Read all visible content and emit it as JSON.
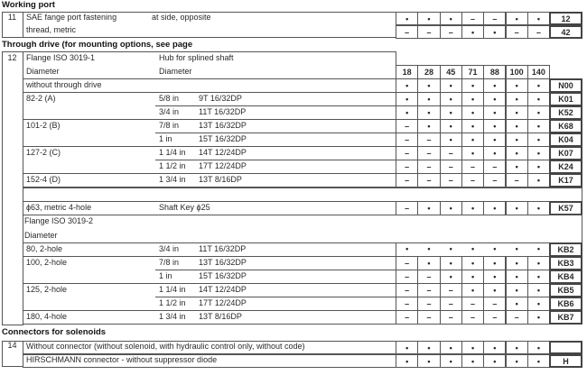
{
  "working_port": {
    "title": "Working port",
    "number": "11",
    "label": [
      "SAE fange port fastening",
      "thread, metric"
    ],
    "options": [
      {
        "desc": "at side, opposite",
        "values": [
          "•",
          "•",
          "•",
          "–",
          "–",
          "•",
          "•"
        ],
        "code": "12"
      },
      {
        "desc": "",
        "values": [
          "–",
          "–",
          "–",
          "•",
          "•",
          "–",
          "–"
        ],
        "code": "42"
      }
    ]
  },
  "through_drive": {
    "title": "Through drive (for mounting options, see page",
    "number": "12",
    "header": {
      "flange": "Flange ISO 3019-1",
      "hub": "Hub for splined shaft",
      "flange_sub": "Diameter",
      "hub_sub": "Diameter"
    },
    "sizes": [
      "18",
      "28",
      "45",
      "71",
      "88",
      "100",
      "140"
    ],
    "rows_a": [
      {
        "flange": "without through drive",
        "hub": "",
        "spline": "",
        "values": [
          "•",
          "•",
          "•",
          "•",
          "•",
          "•",
          "•"
        ],
        "code": "N00"
      },
      {
        "flange": "82-2 (A)",
        "hub": "5/8 in",
        "spline": "9T 16/32DP",
        "values": [
          "•",
          "•",
          "•",
          "•",
          "•",
          "•",
          "•"
        ],
        "code": "K01"
      },
      {
        "flange": "",
        "hub": "3/4 in",
        "spline": "11T 16/32DP",
        "values": [
          "•",
          "•",
          "•",
          "•",
          "•",
          "•",
          "•"
        ],
        "code": "K52"
      },
      {
        "flange": "101-2 (B)",
        "hub": "7/8 in",
        "spline": "13T 16/32DP",
        "values": [
          "–",
          "•",
          "•",
          "•",
          "•",
          "•",
          "•"
        ],
        "code": "K68"
      },
      {
        "flange": "",
        "hub": "1 in",
        "spline": "15T 16/32DP",
        "values": [
          "–",
          "–",
          "•",
          "•",
          "•",
          "•",
          "•"
        ],
        "code": "K04"
      },
      {
        "flange": "127-2 (C)",
        "hub": "1 1/4 in",
        "spline": "14T 12/24DP",
        "values": [
          "–",
          "–",
          "–",
          "•",
          "•",
          "•",
          "•"
        ],
        "code": "K07"
      },
      {
        "flange": "",
        "hub": "1 1/2 in",
        "spline": "17T 12/24DP",
        "values": [
          "–",
          "–",
          "–",
          "–",
          "–",
          "•",
          "•"
        ],
        "code": "K24"
      },
      {
        "flange": "152-4 (D)",
        "hub": "1 3/4 in",
        "spline": "13T 8/16DP",
        "values": [
          "–",
          "–",
          "–",
          "–",
          "–",
          "–",
          "•"
        ],
        "code": "K17"
      }
    ],
    "row_metric": {
      "flange": "ϕ63, metric 4-hole",
      "hub": "Shaft Key ϕ25",
      "values": [
        "–",
        "•",
        "•",
        "•",
        "•",
        "•",
        "•"
      ],
      "code": "K57"
    },
    "header_b": {
      "flange": "Flange ISO 3019-2",
      "flange_sub": "Diameter"
    },
    "rows_b": [
      {
        "flange": "80, 2-hole",
        "hub": "3/4 in",
        "spline": "11T 16/32DP",
        "values": [
          "•",
          "•",
          "•",
          "•",
          "•",
          "•",
          "•"
        ],
        "code": "KB2"
      },
      {
        "flange": "100, 2-hole",
        "hub": "7/8 in",
        "spline": "13T 16/32DP",
        "values": [
          "–",
          "•",
          "•",
          "•",
          "•",
          "•",
          "•"
        ],
        "code": "KB3"
      },
      {
        "flange": "",
        "hub": "1 in",
        "spline": "15T 16/32DP",
        "values": [
          "–",
          "–",
          "•",
          "•",
          "•",
          "•",
          "•"
        ],
        "code": "KB4"
      },
      {
        "flange": "125, 2-hole",
        "hub": "1 1/4 in",
        "spline": "14T 12/24DP",
        "values": [
          "–",
          "–",
          "–",
          "•",
          "•",
          "•",
          "•"
        ],
        "code": "KB5"
      },
      {
        "flange": "",
        "hub": "1 1/2 in",
        "spline": "17T 12/24DP",
        "values": [
          "–",
          "–",
          "–",
          "–",
          "–",
          "•",
          "•"
        ],
        "code": "KB6"
      },
      {
        "flange": "180, 4-hole",
        "hub": "1 3/4 in",
        "spline": "13T 8/16DP",
        "values": [
          "–",
          "–",
          "–",
          "–",
          "–",
          "–",
          "•"
        ],
        "code": "KB7"
      }
    ]
  },
  "connectors": {
    "title": "Connectors for solenoids",
    "number": "14",
    "options": [
      {
        "desc": "Without connector (without solenoid, with hydraulic control only, without code)",
        "values": [
          "•",
          "•",
          "•",
          "•",
          "•",
          "•",
          "•"
        ],
        "code": ""
      },
      {
        "desc": "HIRSCHMANN connector - without suppressor diode",
        "values": [
          "•",
          "•",
          "•",
          "•",
          "•",
          "•",
          "•"
        ],
        "code": "H"
      }
    ]
  }
}
